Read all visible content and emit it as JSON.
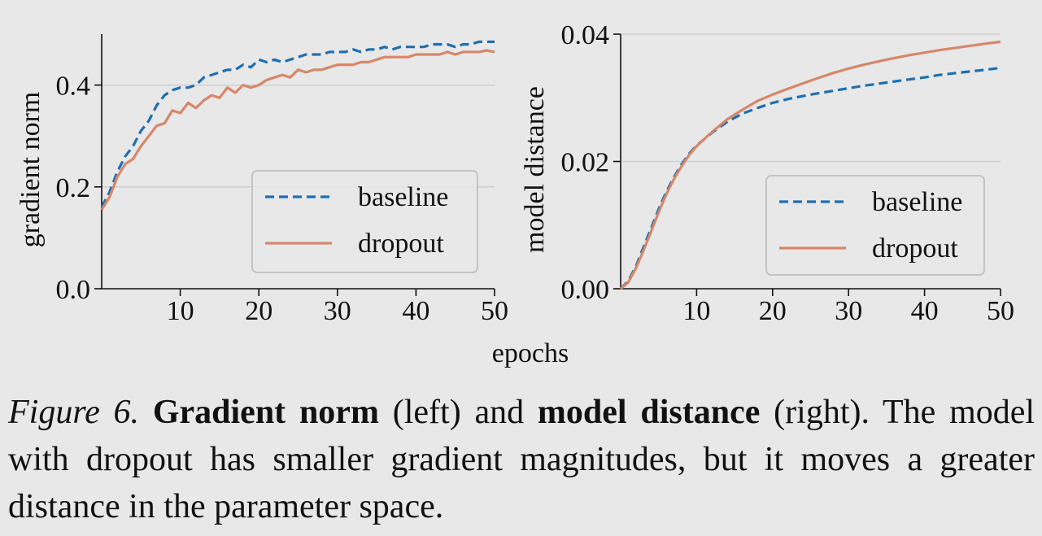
{
  "shared_xlabel": "epochs",
  "caption": {
    "figure_label": "Figure 6.",
    "bold1": "Gradient norm",
    "text1": "(left) and",
    "bold2": "model distance",
    "text2": "(right). The model with dropout has smaller gradient magnitudes, but it moves a greater distance in the parameter space."
  },
  "colors": {
    "baseline": "#1f6fb0",
    "dropout": "#d6876a",
    "grid": "#cfcfcf",
    "axis": "#111111"
  },
  "chart_data": [
    {
      "type": "line",
      "title": "",
      "xlabel": "",
      "ylabel": "gradient norm",
      "xlim": [
        0,
        50
      ],
      "ylim": [
        0,
        0.5
      ],
      "xticks": [
        10,
        20,
        30,
        40,
        50
      ],
      "xtick_labels": [
        "10",
        "20",
        "30",
        "40",
        "50"
      ],
      "yticks": [
        0.0,
        0.2,
        0.4
      ],
      "ytick_labels": [
        "0.0",
        "0.2",
        "0.4"
      ],
      "grid": "horizontal",
      "legend": "lower-right",
      "series": [
        {
          "name": "baseline",
          "style": "dashed",
          "color": "#1f6fb0",
          "x": [
            0,
            1,
            2,
            3,
            4,
            5,
            6,
            7,
            8,
            9,
            10,
            11,
            12,
            13,
            14,
            15,
            16,
            17,
            18,
            19,
            20,
            21,
            22,
            23,
            24,
            25,
            26,
            27,
            28,
            29,
            30,
            31,
            32,
            33,
            34,
            35,
            36,
            37,
            38,
            39,
            40,
            41,
            42,
            43,
            44,
            45,
            46,
            47,
            48,
            49,
            50
          ],
          "y": [
            0.16,
            0.19,
            0.23,
            0.26,
            0.28,
            0.31,
            0.33,
            0.36,
            0.38,
            0.39,
            0.395,
            0.395,
            0.4,
            0.415,
            0.42,
            0.425,
            0.43,
            0.43,
            0.44,
            0.435,
            0.45,
            0.445,
            0.45,
            0.445,
            0.45,
            0.455,
            0.46,
            0.46,
            0.46,
            0.465,
            0.465,
            0.465,
            0.47,
            0.465,
            0.47,
            0.47,
            0.475,
            0.47,
            0.475,
            0.475,
            0.475,
            0.475,
            0.48,
            0.48,
            0.48,
            0.475,
            0.48,
            0.48,
            0.485,
            0.485,
            0.485
          ]
        },
        {
          "name": "dropout",
          "style": "solid",
          "color": "#d6876a",
          "x": [
            0,
            1,
            2,
            3,
            4,
            5,
            6,
            7,
            8,
            9,
            10,
            11,
            12,
            13,
            14,
            15,
            16,
            17,
            18,
            19,
            20,
            21,
            22,
            23,
            24,
            25,
            26,
            27,
            28,
            29,
            30,
            31,
            32,
            33,
            34,
            35,
            36,
            37,
            38,
            39,
            40,
            41,
            42,
            43,
            44,
            45,
            46,
            47,
            48,
            49,
            50
          ],
          "y": [
            0.155,
            0.18,
            0.22,
            0.245,
            0.255,
            0.28,
            0.3,
            0.32,
            0.325,
            0.35,
            0.345,
            0.365,
            0.355,
            0.37,
            0.38,
            0.375,
            0.395,
            0.385,
            0.4,
            0.395,
            0.4,
            0.41,
            0.415,
            0.42,
            0.415,
            0.43,
            0.425,
            0.43,
            0.43,
            0.435,
            0.44,
            0.44,
            0.44,
            0.445,
            0.445,
            0.45,
            0.455,
            0.455,
            0.455,
            0.455,
            0.46,
            0.46,
            0.46,
            0.46,
            0.465,
            0.46,
            0.465,
            0.465,
            0.465,
            0.468,
            0.465
          ]
        }
      ]
    },
    {
      "type": "line",
      "title": "",
      "xlabel": "",
      "ylabel": "model distance",
      "xlim": [
        0,
        50
      ],
      "ylim": [
        0,
        0.04
      ],
      "xticks": [
        10,
        20,
        30,
        40,
        50
      ],
      "xtick_labels": [
        "10",
        "20",
        "30",
        "40",
        "50"
      ],
      "yticks": [
        0.0,
        0.02,
        0.04
      ],
      "ytick_labels": [
        "0.00",
        "0.02",
        "0.04"
      ],
      "grid": "horizontal",
      "legend": "lower-right",
      "series": [
        {
          "name": "baseline",
          "style": "dashed",
          "color": "#1f6fb0",
          "x": [
            0,
            1,
            2,
            3,
            4,
            5,
            6,
            7,
            8,
            9,
            10,
            12,
            14,
            16,
            18,
            20,
            22,
            25,
            28,
            30,
            32,
            35,
            38,
            40,
            42,
            45,
            48,
            50
          ],
          "y": [
            0.0,
            0.0012,
            0.0035,
            0.0065,
            0.0095,
            0.0125,
            0.0152,
            0.0175,
            0.0195,
            0.0212,
            0.0225,
            0.0245,
            0.0262,
            0.0275,
            0.0284,
            0.0292,
            0.0298,
            0.0305,
            0.0311,
            0.0315,
            0.0319,
            0.0324,
            0.0329,
            0.0332,
            0.0336,
            0.034,
            0.0344,
            0.0347
          ]
        },
        {
          "name": "dropout",
          "style": "solid",
          "color": "#d6876a",
          "x": [
            0,
            1,
            2,
            3,
            4,
            5,
            6,
            7,
            8,
            9,
            10,
            12,
            14,
            16,
            18,
            20,
            22,
            25,
            28,
            30,
            32,
            35,
            38,
            40,
            42,
            45,
            48,
            50
          ],
          "y": [
            0.0,
            0.001,
            0.0032,
            0.006,
            0.009,
            0.012,
            0.0148,
            0.0172,
            0.0192,
            0.021,
            0.0224,
            0.0246,
            0.0266,
            0.0281,
            0.0295,
            0.0305,
            0.0314,
            0.0327,
            0.0339,
            0.0346,
            0.0352,
            0.036,
            0.0367,
            0.0371,
            0.0375,
            0.038,
            0.0385,
            0.0388
          ]
        }
      ]
    }
  ]
}
